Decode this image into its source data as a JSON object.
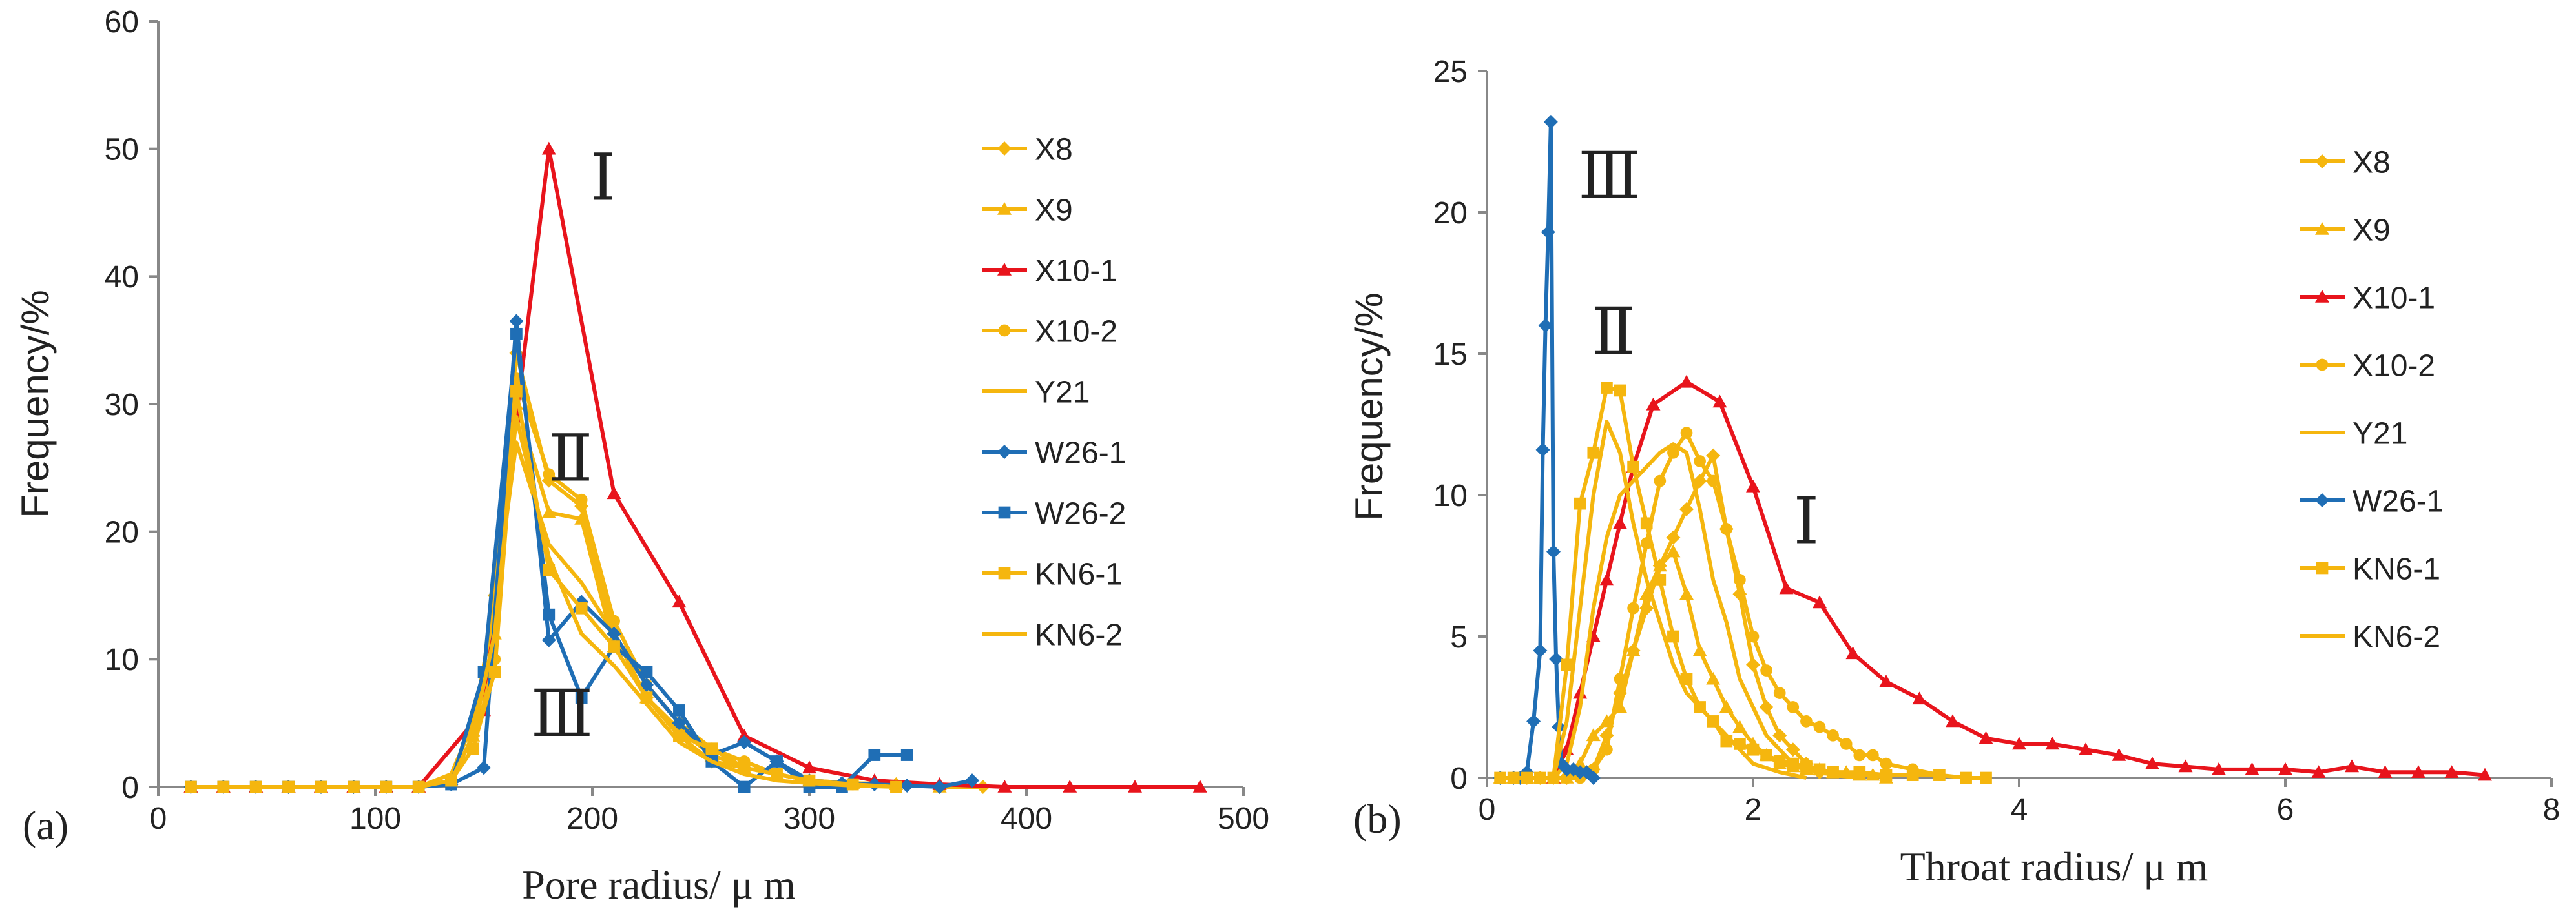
{
  "chart_data": [
    {
      "type": "line",
      "panel_label": "(a)",
      "xlabel": "Pore radius/ μ m",
      "ylabel": "Frequency/%",
      "xlim": [
        0,
        500
      ],
      "ylim": [
        0,
        60
      ],
      "xticks": [
        "0",
        "100",
        "200",
        "300",
        "400",
        "500"
      ],
      "yticks": [
        "0",
        "10",
        "20",
        "30",
        "40",
        "50",
        "60"
      ],
      "legend_position": "right",
      "annotations": [
        {
          "text": "Ⅰ",
          "x": 205,
          "y": 46
        },
        {
          "text": "Ⅱ",
          "x": 190,
          "y": 24
        },
        {
          "text": "Ⅲ",
          "x": 186,
          "y": 4
        }
      ],
      "series": [
        {
          "name": "X8",
          "color": "#F5B60E",
          "marker": "diamond",
          "x": [
            15,
            30,
            45,
            60,
            75,
            90,
            105,
            120,
            135,
            145,
            155,
            165,
            180,
            195,
            210,
            225,
            240,
            255,
            270,
            285,
            300,
            320,
            340,
            360,
            380
          ],
          "y": [
            0,
            0,
            0,
            0,
            0,
            0,
            0,
            0,
            0.5,
            4,
            15,
            34,
            24,
            22,
            12,
            7,
            4,
            2,
            1.5,
            1,
            0.5,
            0.3,
            0.2,
            0,
            0
          ]
        },
        {
          "name": "X9",
          "color": "#F5B60E",
          "marker": "triangle",
          "x": [
            15,
            30,
            45,
            60,
            75,
            90,
            105,
            120,
            135,
            145,
            155,
            165,
            180,
            195,
            210,
            225,
            240,
            255,
            270,
            285,
            300,
            320,
            340,
            360
          ],
          "y": [
            0,
            0,
            0,
            0,
            0,
            0,
            0,
            0,
            0.5,
            4,
            12,
            30,
            21.5,
            21,
            11,
            7,
            4.5,
            2.5,
            1.5,
            1,
            0.5,
            0.3,
            0.2,
            0
          ]
        },
        {
          "name": "X10-1",
          "color": "#E8141C",
          "marker": "triangle",
          "x": [
            15,
            30,
            45,
            60,
            75,
            90,
            105,
            120,
            150,
            165,
            180,
            210,
            240,
            270,
            300,
            330,
            360,
            390,
            420,
            450,
            480
          ],
          "y": [
            0,
            0,
            0,
            0,
            0,
            0,
            0,
            0,
            6,
            29,
            50,
            23,
            14.5,
            4,
            1.5,
            0.5,
            0.2,
            0,
            0,
            0,
            0
          ]
        },
        {
          "name": "X10-2",
          "color": "#F5B60E",
          "marker": "circle",
          "x": [
            15,
            30,
            45,
            60,
            75,
            90,
            105,
            120,
            135,
            145,
            155,
            165,
            180,
            195,
            210,
            225,
            240,
            255,
            270,
            285,
            300,
            320,
            340
          ],
          "y": [
            0,
            0,
            0,
            0,
            0,
            0,
            0,
            0,
            0.5,
            3,
            10,
            32,
            24.5,
            22.5,
            13,
            8,
            5,
            3,
            2,
            1,
            0.5,
            0.2,
            0
          ]
        },
        {
          "name": "Y21",
          "color": "#F5B60E",
          "marker": "none",
          "x": [
            15,
            30,
            45,
            60,
            75,
            90,
            105,
            120,
            135,
            145,
            155,
            165,
            180,
            195,
            210,
            225,
            240,
            255,
            270,
            285,
            300,
            320,
            340
          ],
          "y": [
            0,
            0,
            0,
            0,
            0,
            0,
            0,
            0,
            1,
            5,
            14,
            27,
            19,
            16,
            12,
            8,
            5,
            3,
            2,
            1,
            0.5,
            0.2,
            0
          ]
        },
        {
          "name": "W26-1",
          "color": "#1F6EB5",
          "marker": "diamond",
          "x": [
            15,
            30,
            45,
            60,
            75,
            90,
            105,
            120,
            135,
            150,
            165,
            180,
            195,
            210,
            225,
            240,
            255,
            270,
            285,
            300,
            315,
            330,
            345,
            360,
            375
          ],
          "y": [
            0,
            0,
            0,
            0,
            0,
            0,
            0,
            0,
            0.2,
            1.5,
            36.5,
            11.5,
            14.5,
            12,
            8,
            5,
            2.5,
            3.5,
            2,
            0.5,
            0.3,
            0.2,
            0.1,
            0,
            0.5
          ]
        },
        {
          "name": "W26-2",
          "color": "#1F6EB5",
          "marker": "square",
          "x": [
            15,
            30,
            45,
            60,
            75,
            90,
            105,
            120,
            135,
            150,
            165,
            180,
            195,
            210,
            225,
            240,
            255,
            270,
            285,
            300,
            315,
            330,
            345
          ],
          "y": [
            0,
            0,
            0,
            0,
            0,
            0,
            0,
            0,
            0.2,
            9,
            35.5,
            13.5,
            7,
            11,
            9,
            6,
            2,
            0,
            2,
            0,
            0,
            2.5,
            2.5
          ]
        },
        {
          "name": "KN6-1",
          "color": "#F5B60E",
          "marker": "square",
          "x": [
            15,
            30,
            45,
            60,
            75,
            90,
            105,
            120,
            135,
            145,
            155,
            165,
            180,
            195,
            210,
            225,
            240,
            255,
            270,
            285,
            300,
            320,
            340
          ],
          "y": [
            0,
            0,
            0,
            0,
            0,
            0,
            0,
            0,
            0.5,
            3,
            9,
            31,
            17,
            14,
            11,
            7,
            4,
            3,
            1.5,
            1,
            0.5,
            0.2,
            0
          ]
        },
        {
          "name": "KN6-2",
          "color": "#F5B60E",
          "marker": "none",
          "x": [
            15,
            30,
            45,
            60,
            75,
            90,
            105,
            120,
            135,
            145,
            155,
            165,
            180,
            195,
            210,
            225,
            240,
            255,
            270,
            285,
            300,
            320,
            340
          ],
          "y": [
            0,
            0,
            0,
            0,
            0,
            0,
            0,
            0,
            0.5,
            4,
            12,
            29,
            18,
            12,
            9.5,
            6.5,
            3.5,
            2,
            1,
            0.5,
            0.3,
            0.1,
            0
          ]
        }
      ]
    },
    {
      "type": "line",
      "panel_label": "(b)",
      "xlabel": "Throat radius/ μ m",
      "ylabel": "Frequency/%",
      "xlim": [
        0,
        8
      ],
      "ylim": [
        0,
        25
      ],
      "xticks": [
        "0",
        "2",
        "4",
        "6",
        "8"
      ],
      "yticks": [
        "0",
        "5",
        "10",
        "15",
        "20",
        "25"
      ],
      "legend_position": "right",
      "annotations": [
        {
          "text": "Ⅲ",
          "x": 0.92,
          "y": 20.5
        },
        {
          "text": "Ⅱ",
          "x": 0.95,
          "y": 15
        },
        {
          "text": "Ⅰ",
          "x": 2.4,
          "y": 8.3
        }
      ],
      "series": [
        {
          "name": "X8",
          "color": "#F5B60E",
          "marker": "diamond",
          "x": [
            0.1,
            0.2,
            0.3,
            0.4,
            0.5,
            0.6,
            0.7,
            0.8,
            0.9,
            1.0,
            1.1,
            1.2,
            1.3,
            1.4,
            1.5,
            1.6,
            1.7,
            1.8,
            1.9,
            2.0,
            2.1,
            2.2,
            2.3,
            2.4,
            2.5
          ],
          "y": [
            0,
            0,
            0,
            0,
            0,
            0,
            0.1,
            0.3,
            1.5,
            3,
            4.5,
            6,
            7.5,
            8.5,
            9.5,
            10.5,
            11.4,
            8.8,
            6.5,
            4,
            2.5,
            1.5,
            1,
            0.5,
            0.2
          ]
        },
        {
          "name": "X9",
          "color": "#F5B60E",
          "marker": "triangle",
          "x": [
            0.1,
            0.2,
            0.3,
            0.4,
            0.5,
            0.6,
            0.7,
            0.8,
            0.9,
            1.0,
            1.1,
            1.2,
            1.3,
            1.4,
            1.5,
            1.6,
            1.7,
            1.8,
            1.9,
            2.0,
            2.1,
            2.2,
            2.3,
            2.4,
            2.5,
            2.6,
            2.7,
            2.8,
            2.9,
            3.0
          ],
          "y": [
            0,
            0,
            0,
            0,
            0,
            0,
            0.5,
            1.5,
            2,
            2.5,
            4.5,
            6.5,
            7.5,
            8,
            6.5,
            4.5,
            3.5,
            2.5,
            1.8,
            1.2,
            0.8,
            0.5,
            0.4,
            0.3,
            0.3,
            0.2,
            0.2,
            0.1,
            0.1,
            0
          ]
        },
        {
          "name": "X10-1",
          "color": "#E8141C",
          "marker": "triangle",
          "x": [
            0.5,
            0.6,
            0.7,
            0.8,
            0.9,
            1.0,
            1.1,
            1.25,
            1.5,
            1.75,
            2.0,
            2.25,
            2.5,
            2.75,
            3.0,
            3.25,
            3.5,
            3.75,
            4.0,
            4.25,
            4.5,
            4.75,
            5.0,
            5.25,
            5.5,
            5.75,
            6.0,
            6.25,
            6.5,
            6.75,
            7.0,
            7.25,
            7.5
          ],
          "y": [
            0,
            1,
            3,
            5,
            7,
            9,
            11,
            13.2,
            14,
            13.3,
            10.3,
            6.7,
            6.2,
            4.4,
            3.4,
            2.8,
            2,
            1.4,
            1.2,
            1.2,
            1,
            0.8,
            0.5,
            0.4,
            0.3,
            0.3,
            0.3,
            0.2,
            0.4,
            0.2,
            0.2,
            0.2,
            0.1
          ]
        },
        {
          "name": "X10-2",
          "color": "#F5B60E",
          "marker": "circle",
          "x": [
            0.1,
            0.2,
            0.3,
            0.4,
            0.5,
            0.6,
            0.7,
            0.8,
            0.9,
            1.0,
            1.1,
            1.2,
            1.3,
            1.4,
            1.5,
            1.6,
            1.7,
            1.8,
            1.9,
            2.0,
            2.1,
            2.2,
            2.3,
            2.4,
            2.5,
            2.6,
            2.7,
            2.8,
            2.9,
            3.0,
            3.2,
            3.4
          ],
          "y": [
            0,
            0,
            0,
            0,
            0,
            0,
            0,
            0.3,
            1,
            3.5,
            6,
            8.3,
            10.5,
            11.5,
            12.2,
            11.2,
            10.5,
            8.8,
            7,
            5,
            3.8,
            3,
            2.5,
            2,
            1.8,
            1.5,
            1.2,
            0.8,
            0.8,
            0.5,
            0.3,
            0.1
          ]
        },
        {
          "name": "Y21",
          "color": "#F5B60E",
          "marker": "none",
          "x": [
            0.1,
            0.2,
            0.3,
            0.4,
            0.5,
            0.6,
            0.7,
            0.8,
            0.9,
            1.0,
            1.1,
            1.2,
            1.3,
            1.4,
            1.5,
            1.6,
            1.7,
            1.8,
            1.9,
            2.0,
            2.1,
            2.2,
            2.3,
            2.4,
            2.5,
            2.6,
            2.8
          ],
          "y": [
            0,
            0,
            0,
            0,
            0,
            0.5,
            2.5,
            6,
            8.5,
            10,
            10.5,
            11,
            11.5,
            11.8,
            11.5,
            9.5,
            7,
            5.5,
            3.5,
            2.5,
            1.5,
            1,
            0.5,
            0.3,
            0.2,
            0.1,
            0
          ]
        },
        {
          "name": "W26-1",
          "color": "#1F6EB5",
          "marker": "diamond",
          "x": [
            0.1,
            0.2,
            0.25,
            0.3,
            0.35,
            0.4,
            0.42,
            0.44,
            0.46,
            0.48,
            0.5,
            0.52,
            0.54,
            0.56,
            0.6,
            0.65,
            0.7,
            0.75,
            0.8
          ],
          "y": [
            0,
            0,
            0,
            0.2,
            2,
            4.5,
            11.6,
            16,
            19.3,
            23.2,
            8,
            4.2,
            1.8,
            0.5,
            0.3,
            0.3,
            0.2,
            0.2,
            0
          ]
        },
        {
          "name": "KN6-1",
          "color": "#F5B60E",
          "marker": "square",
          "x": [
            0.1,
            0.2,
            0.3,
            0.4,
            0.5,
            0.6,
            0.7,
            0.8,
            0.9,
            1.0,
            1.1,
            1.2,
            1.3,
            1.4,
            1.5,
            1.6,
            1.7,
            1.8,
            1.9,
            2.0,
            2.1,
            2.2,
            2.3,
            2.4,
            2.5,
            2.6,
            2.8,
            3.0,
            3.2,
            3.4,
            3.6,
            3.75
          ],
          "y": [
            0,
            0,
            0,
            0,
            0,
            4,
            9.7,
            11.5,
            13.8,
            13.7,
            11,
            9,
            7,
            5,
            3.5,
            2.5,
            2,
            1.3,
            1.2,
            1,
            0.8,
            0.6,
            0.5,
            0.4,
            0.3,
            0.2,
            0.2,
            0.1,
            0.1,
            0.1,
            0,
            0
          ]
        },
        {
          "name": "KN6-2",
          "color": "#F5B60E",
          "marker": "none",
          "x": [
            0.1,
            0.2,
            0.3,
            0.4,
            0.5,
            0.6,
            0.7,
            0.8,
            0.9,
            1.0,
            1.1,
            1.2,
            1.3,
            1.4,
            1.5,
            1.6,
            1.7,
            1.8,
            1.9,
            2.0,
            2.2,
            2.4
          ],
          "y": [
            0,
            0,
            0,
            0,
            0,
            2,
            6,
            10,
            12.6,
            11.5,
            9,
            7,
            5.5,
            4,
            3,
            2.5,
            2,
            1.5,
            1,
            0.5,
            0.2,
            0
          ]
        }
      ]
    }
  ]
}
